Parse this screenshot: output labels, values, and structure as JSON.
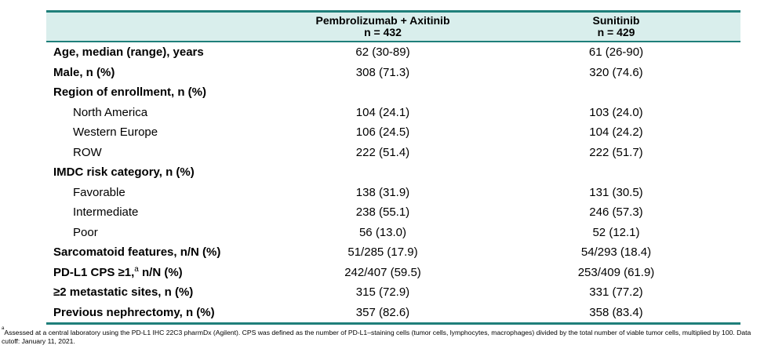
{
  "table": {
    "headers": [
      {
        "title": "",
        "n": ""
      },
      {
        "title": "Pembrolizumab + Axitinib",
        "n": "n = 432"
      },
      {
        "title": "Sunitinib",
        "n": "n = 429"
      }
    ],
    "rows": [
      {
        "label": "Age, median (range), years",
        "style": "bold",
        "a": "62 (30-89)",
        "b": "61 (26-90)"
      },
      {
        "label": "Male, n (%)",
        "style": "bold",
        "a": "308 (71.3)",
        "b": "320 (74.6)"
      },
      {
        "label": "Region of enrollment, n (%)",
        "style": "bold",
        "a": "",
        "b": ""
      },
      {
        "label": "North America",
        "style": "indent",
        "a": "104 (24.1)",
        "b": "103 (24.0)"
      },
      {
        "label": "Western Europe",
        "style": "indent",
        "a": "106 (24.5)",
        "b": "104 (24.2)"
      },
      {
        "label": "ROW",
        "style": "indent",
        "a": "222 (51.4)",
        "b": "222 (51.7)"
      },
      {
        "label": "IMDC risk category, n (%)",
        "style": "bold",
        "a": "",
        "b": ""
      },
      {
        "label": "Favorable",
        "style": "indent",
        "a": "138 (31.9)",
        "b": "131 (30.5)"
      },
      {
        "label": "Intermediate",
        "style": "indent",
        "a": "238 (55.1)",
        "b": "246 (57.3)"
      },
      {
        "label": "Poor",
        "style": "indent",
        "a": "56 (13.0)",
        "b": "52 (12.1)"
      },
      {
        "label": "Sarcomatoid features, n/N (%)",
        "style": "bold",
        "a": "51/285 (17.9)",
        "b": "54/293 (18.4)"
      },
      {
        "label": "PD-L1 CPS ≥1,",
        "label_sup": "a",
        "label_after": " n/N (%)",
        "style": "bold",
        "a": "242/407 (59.5)",
        "b": "253/409 (61.9)"
      },
      {
        "label": "≥2 metastatic sites, n (%)",
        "style": "bold",
        "a": "315 (72.9)",
        "b": "331 (77.2)"
      },
      {
        "label": "Previous nephrectomy, n (%)",
        "style": "bold",
        "a": "357 (82.6)",
        "b": "358 (83.4)"
      }
    ]
  },
  "footnote": {
    "marker": "a",
    "text": "Assessed at a central laboratory using the PD-L1 IHC 22C3 pharmDx (Agilent). CPS was defined as the number of PD-L1–staining cells (tumor cells, lymphocytes, macrophages) divided by the total number of viable tumor cells, multiplied by 100. Data cutoff: January 11, 2021."
  },
  "colors": {
    "accent": "#1f7f7a",
    "header_bg": "#d9eeec"
  }
}
